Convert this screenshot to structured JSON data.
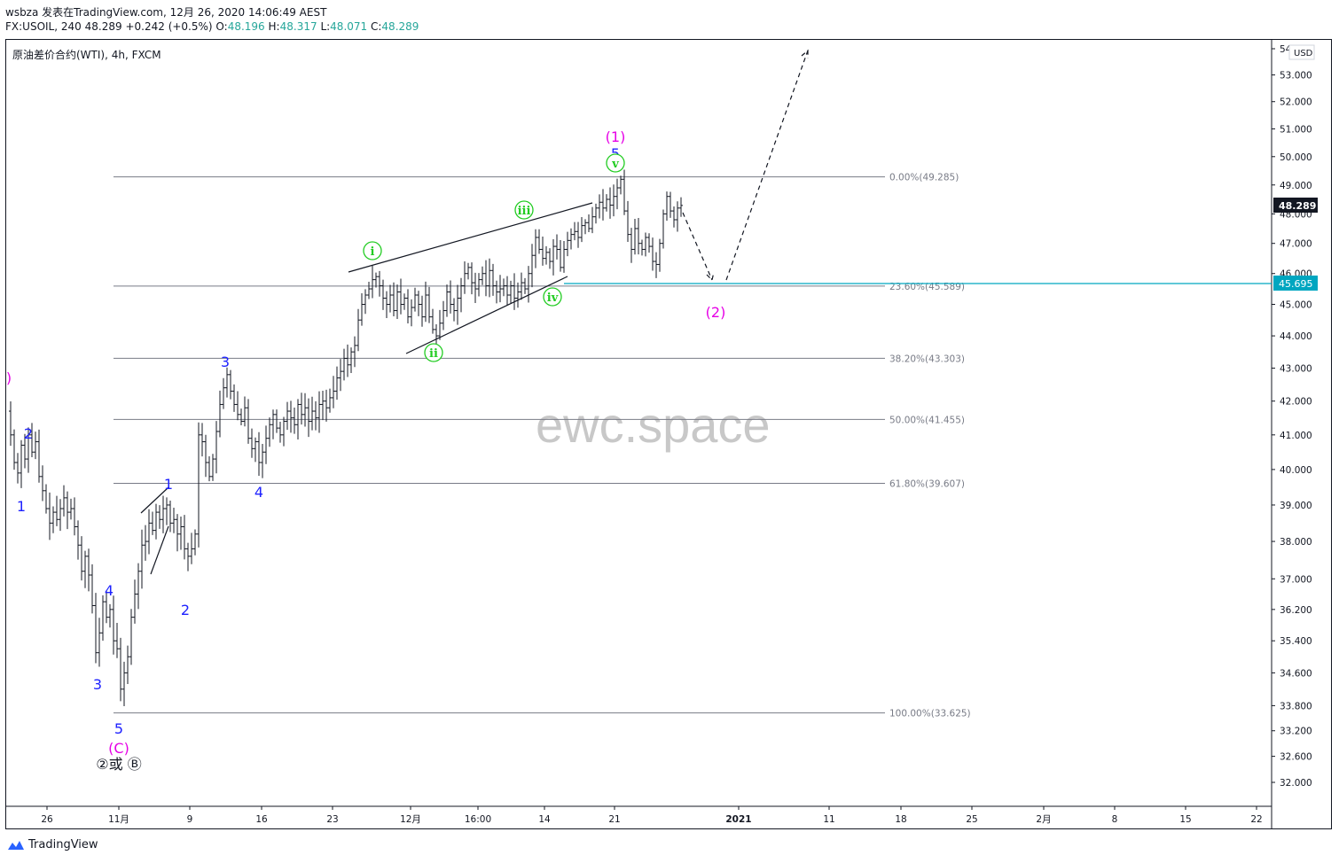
{
  "header": {
    "line1": "wsbza 发表在TradingView.com, 12月 26, 2020 14:06:49 AEST",
    "symbol_interval": "FX:USOIL, 240",
    "last": "48.289",
    "change": "+0.242",
    "change_pct": "(+0.5%)",
    "o_label": "O:",
    "o": "48.196",
    "h_label": "H:",
    "h": "48.317",
    "l_label": "L:",
    "l": "48.071",
    "c_label": "C:",
    "c": "48.289"
  },
  "legend_title": "原油差价合约(WTI), 4h, FXCM",
  "watermark": "ewc.space",
  "footer": {
    "brand": "TradingView"
  },
  "colors": {
    "up": "#26a69a",
    "text": "#131722",
    "magenta": "#e600e6",
    "blue": "#1e22ff",
    "green": "#22cc22",
    "fib": "#787b86",
    "support": "#00a6c0",
    "last_price_bg": "#131722"
  },
  "chart_data": {
    "type": "candlestick",
    "currency": "USD",
    "y_range": [
      31.7,
      54.2
    ],
    "y_scale": "log",
    "y_ticks": [
      "54",
      "53.000",
      "52.000",
      "51.000",
      "50.000",
      "49.000",
      "48.000",
      "47.000",
      "46.000",
      "45.000",
      "44.000",
      "43.000",
      "42.000",
      "41.000",
      "40.000",
      "39.000",
      "38.000",
      "37.000",
      "36.200",
      "35.400",
      "34.600",
      "33.800",
      "33.200",
      "32.600",
      "32.000"
    ],
    "x_ticks": [
      "26",
      "11月",
      "9",
      "16",
      "23",
      "12月",
      "16:00",
      "14",
      "21",
      "2021",
      "11",
      "18",
      "25",
      "2月",
      "8",
      "15",
      "22"
    ],
    "last_price": "48.289",
    "support_price": "45.695",
    "fib_levels": [
      {
        "label": "0.00%(49.285)",
        "value": 49.285
      },
      {
        "label": "23.60%(45.589)",
        "value": 45.589
      },
      {
        "label": "38.20%(43.303)",
        "value": 43.303
      },
      {
        "label": "50.00%(41.455)",
        "value": 41.455
      },
      {
        "label": "61.80%(39.607)",
        "value": 39.607
      },
      {
        "label": "100.00%(33.625)",
        "value": 33.625
      }
    ],
    "price_path": [
      [
        0,
        41.7
      ],
      [
        4,
        41.0
      ],
      [
        8,
        40.2
      ],
      [
        12,
        39.9
      ],
      [
        16,
        40.7
      ],
      [
        20,
        40.3
      ],
      [
        24,
        41.0
      ],
      [
        28,
        40.5
      ],
      [
        32,
        40.8
      ],
      [
        36,
        39.8
      ],
      [
        40,
        39.4
      ],
      [
        44,
        38.9
      ],
      [
        48,
        38.5
      ],
      [
        52,
        38.8
      ],
      [
        56,
        38.6
      ],
      [
        60,
        38.9
      ],
      [
        64,
        39.2
      ],
      [
        68,
        38.8
      ],
      [
        72,
        38.9
      ],
      [
        76,
        38.4
      ],
      [
        80,
        37.9
      ],
      [
        84,
        37.2
      ],
      [
        88,
        37.6
      ],
      [
        92,
        37.1
      ],
      [
        96,
        36.3
      ],
      [
        100,
        35.1
      ],
      [
        104,
        35.6
      ],
      [
        108,
        36.4
      ],
      [
        112,
        36.0
      ],
      [
        116,
        36.2
      ],
      [
        120,
        35.4
      ],
      [
        124,
        35.2
      ],
      [
        128,
        34.2
      ],
      [
        132,
        34.6
      ],
      [
        136,
        35.0
      ],
      [
        140,
        36.0
      ],
      [
        144,
        36.6
      ],
      [
        148,
        37.2
      ],
      [
        152,
        37.9
      ],
      [
        156,
        38.0
      ],
      [
        160,
        38.5
      ],
      [
        164,
        38.3
      ],
      [
        168,
        38.8
      ],
      [
        172,
        38.6
      ],
      [
        176,
        38.9
      ],
      [
        180,
        39.0
      ],
      [
        184,
        38.5
      ],
      [
        188,
        38.6
      ],
      [
        192,
        38.2
      ],
      [
        196,
        38.4
      ],
      [
        200,
        37.8
      ],
      [
        204,
        37.6
      ],
      [
        208,
        37.8
      ],
      [
        212,
        38.2
      ],
      [
        216,
        41.0
      ],
      [
        220,
        40.8
      ],
      [
        224,
        40.2
      ],
      [
        228,
        39.8
      ],
      [
        232,
        40.3
      ],
      [
        236,
        41.1
      ],
      [
        240,
        41.9
      ],
      [
        244,
        42.4
      ],
      [
        248,
        42.8
      ],
      [
        252,
        42.3
      ],
      [
        256,
        41.9
      ],
      [
        260,
        41.6
      ],
      [
        264,
        41.4
      ],
      [
        268,
        41.8
      ],
      [
        272,
        40.9
      ],
      [
        276,
        40.6
      ],
      [
        280,
        40.8
      ],
      [
        284,
        40.2
      ],
      [
        288,
        40.5
      ],
      [
        292,
        40.9
      ],
      [
        296,
        41.3
      ],
      [
        300,
        41.6
      ],
      [
        304,
        41.2
      ],
      [
        308,
        41.0
      ],
      [
        312,
        41.4
      ],
      [
        316,
        41.7
      ],
      [
        320,
        41.5
      ],
      [
        324,
        41.3
      ],
      [
        328,
        41.9
      ],
      [
        332,
        41.6
      ],
      [
        336,
        41.8
      ],
      [
        340,
        41.4
      ],
      [
        344,
        41.7
      ],
      [
        348,
        41.5
      ],
      [
        352,
        41.9
      ],
      [
        356,
        42.0
      ],
      [
        360,
        41.8
      ],
      [
        364,
        42.1
      ],
      [
        368,
        42.3
      ],
      [
        372,
        42.7
      ],
      [
        376,
        42.9
      ],
      [
        380,
        43.3
      ],
      [
        384,
        43.1
      ],
      [
        388,
        43.5
      ],
      [
        392,
        43.7
      ],
      [
        396,
        44.5
      ],
      [
        400,
        45.0
      ],
      [
        404,
        45.3
      ],
      [
        408,
        45.5
      ],
      [
        412,
        45.8
      ],
      [
        416,
        45.9
      ],
      [
        420,
        45.6
      ],
      [
        424,
        45.2
      ],
      [
        428,
        45.0
      ],
      [
        432,
        45.3
      ],
      [
        436,
        44.8
      ],
      [
        440,
        45.4
      ],
      [
        444,
        45.0
      ],
      [
        448,
        45.2
      ],
      [
        452,
        44.6
      ],
      [
        456,
        44.9
      ],
      [
        460,
        45.3
      ],
      [
        464,
        45.0
      ],
      [
        468,
        44.6
      ],
      [
        472,
        45.3
      ],
      [
        476,
        44.6
      ],
      [
        480,
        44.2
      ],
      [
        484,
        44.0
      ],
      [
        488,
        44.4
      ],
      [
        492,
        44.8
      ],
      [
        496,
        45.4
      ],
      [
        500,
        45.0
      ],
      [
        504,
        44.8
      ],
      [
        508,
        45.2
      ],
      [
        512,
        45.6
      ],
      [
        516,
        46.0
      ],
      [
        520,
        46.2
      ],
      [
        524,
        45.7
      ],
      [
        528,
        45.5
      ],
      [
        532,
        45.8
      ],
      [
        536,
        46.0
      ],
      [
        540,
        45.6
      ],
      [
        544,
        46.1
      ],
      [
        548,
        45.6
      ],
      [
        552,
        45.4
      ],
      [
        556,
        45.5
      ],
      [
        560,
        45.6
      ],
      [
        564,
        45.3
      ],
      [
        568,
        45.6
      ],
      [
        572,
        45.2
      ],
      [
        576,
        45.4
      ],
      [
        580,
        45.7
      ],
      [
        584,
        45.5
      ],
      [
        588,
        46.0
      ],
      [
        592,
        46.6
      ],
      [
        596,
        47.2
      ],
      [
        600,
        46.8
      ],
      [
        604,
        46.5
      ],
      [
        608,
        46.7
      ],
      [
        612,
        46.4
      ],
      [
        616,
        46.9
      ],
      [
        620,
        46.8
      ],
      [
        624,
        46.2
      ],
      [
        628,
        46.8
      ],
      [
        632,
        47.1
      ],
      [
        636,
        47.3
      ],
      [
        640,
        47.4
      ],
      [
        644,
        47.2
      ],
      [
        648,
        47.6
      ],
      [
        652,
        47.7
      ],
      [
        656,
        47.5
      ],
      [
        660,
        47.9
      ],
      [
        664,
        48.2
      ],
      [
        668,
        48.4
      ],
      [
        672,
        48.2
      ],
      [
        676,
        48.5
      ],
      [
        680,
        48.3
      ],
      [
        684,
        48.6
      ],
      [
        688,
        48.9
      ],
      [
        692,
        49.2
      ],
      [
        696,
        48.1
      ],
      [
        700,
        47.3
      ],
      [
        704,
        46.8
      ],
      [
        708,
        47.5
      ],
      [
        712,
        47.0
      ],
      [
        716,
        46.8
      ],
      [
        720,
        47.2
      ],
      [
        724,
        46.9
      ],
      [
        728,
        46.4
      ],
      [
        732,
        46.3
      ],
      [
        736,
        47.0
      ],
      [
        740,
        48.0
      ],
      [
        744,
        48.6
      ],
      [
        748,
        48.1
      ],
      [
        752,
        47.8
      ],
      [
        756,
        48.2
      ],
      [
        760,
        48.29
      ]
    ]
  },
  "annotations": {
    "labels": [
      {
        "text": "(1)",
        "color": "magenta",
        "name": "wave-1-magenta-label"
      },
      {
        "text": "5",
        "color": "blue",
        "name": "wave-5-top-label"
      },
      {
        "text": "v",
        "color": "green",
        "name": "wave-v-label",
        "circle": true
      },
      {
        "text": "iii",
        "color": "green",
        "name": "wave-iii-label",
        "circle": true
      },
      {
        "text": "i",
        "color": "green",
        "name": "wave-i-label",
        "circle": true
      },
      {
        "text": "ii",
        "color": "green",
        "name": "wave-ii-label",
        "circle": true
      },
      {
        "text": "iv",
        "color": "green",
        "name": "wave-iv-label",
        "circle": true
      },
      {
        "text": "(2)",
        "color": "magenta",
        "name": "wave-2-magenta-label"
      },
      {
        "text": ")",
        "color": "magenta",
        "name": "edge-paren-label"
      },
      {
        "text": "3",
        "color": "blue",
        "name": "wave-3-label"
      },
      {
        "text": "4",
        "color": "blue",
        "name": "wave-4-label"
      },
      {
        "text": "1",
        "color": "blue",
        "name": "wave-1-small-label"
      },
      {
        "text": "2",
        "color": "blue",
        "name": "wave-2-small-label"
      },
      {
        "text": "2",
        "color": "blue",
        "name": "wave-2-left-label"
      },
      {
        "text": "1",
        "color": "blue",
        "name": "wave-1-left-label"
      },
      {
        "text": "4",
        "color": "blue",
        "name": "wave-4-left-label"
      },
      {
        "text": "3",
        "color": "blue",
        "name": "wave-3-left-label"
      },
      {
        "text": "5",
        "color": "blue",
        "name": "wave-5-bottom-label"
      },
      {
        "text": "(C)",
        "color": "magenta",
        "name": "wave-c-label"
      },
      {
        "text": "②或 Ⓑ",
        "color": "text",
        "name": "wave-2-or-b-label"
      }
    ]
  }
}
